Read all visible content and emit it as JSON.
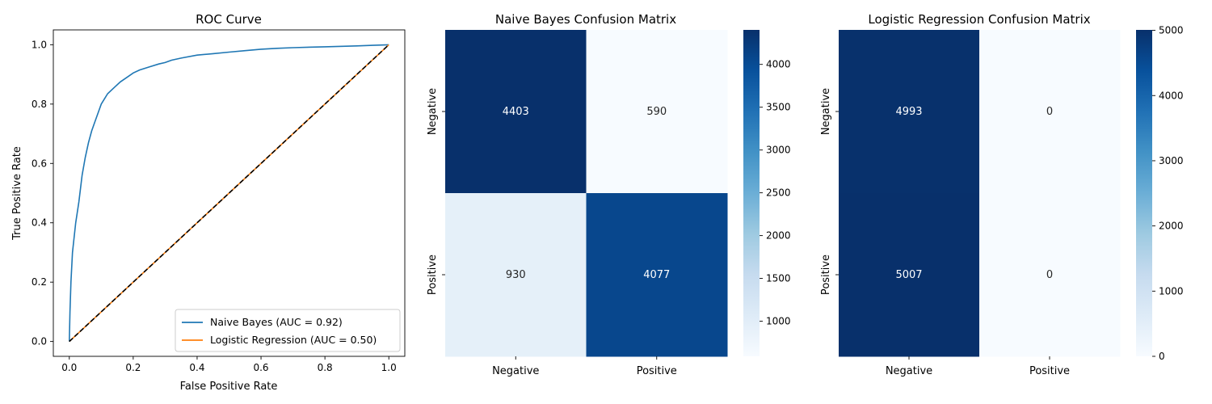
{
  "chart_data": [
    {
      "type": "line",
      "title": "ROC Curve",
      "xlabel": "False Positive Rate",
      "ylabel": "True Positive Rate",
      "xlim": [
        -0.05,
        1.05
      ],
      "ylim": [
        -0.05,
        1.05
      ],
      "xticks": [
        "0.0",
        "0.2",
        "0.4",
        "0.6",
        "0.8",
        "1.0"
      ],
      "yticks": [
        "0.0",
        "0.2",
        "0.4",
        "0.6",
        "0.8",
        "1.0"
      ],
      "grid": false,
      "legend_position": "lower-right",
      "series": [
        {
          "name": "Naive Bayes (AUC = 0.92)",
          "color": "#1f77b4",
          "x": [
            0,
            0.002,
            0.005,
            0.01,
            0.015,
            0.02,
            0.03,
            0.04,
            0.05,
            0.06,
            0.07,
            0.08,
            0.1,
            0.12,
            0.14,
            0.16,
            0.18,
            0.2,
            0.22,
            0.25,
            0.28,
            0.3,
            0.32,
            0.35,
            0.4,
            0.45,
            0.5,
            0.55,
            0.6,
            0.65,
            0.7,
            0.8,
            0.9,
            0.95,
            1.0
          ],
          "y": [
            0,
            0.1,
            0.2,
            0.3,
            0.35,
            0.4,
            0.47,
            0.56,
            0.62,
            0.67,
            0.71,
            0.74,
            0.8,
            0.835,
            0.855,
            0.875,
            0.89,
            0.905,
            0.915,
            0.925,
            0.935,
            0.94,
            0.948,
            0.955,
            0.965,
            0.97,
            0.975,
            0.98,
            0.985,
            0.988,
            0.99,
            0.993,
            0.996,
            0.998,
            1.0
          ]
        },
        {
          "name": "Logistic Regression (AUC = 0.50)",
          "color": "#ff7f0e",
          "x": [
            0,
            1
          ],
          "y": [
            0,
            1
          ]
        }
      ],
      "reference_line": {
        "x": [
          0,
          1
        ],
        "y": [
          0,
          1
        ],
        "color": "#000000",
        "style": "dashed"
      }
    },
    {
      "type": "heatmap",
      "title": "Naive Bayes Confusion Matrix",
      "row_labels": [
        "Negative",
        "Positive"
      ],
      "col_labels": [
        "Negative",
        "Positive"
      ],
      "values": [
        [
          4403,
          590
        ],
        [
          930,
          4077
        ]
      ],
      "colormap": "Blues",
      "color_range": [
        590,
        4403
      ],
      "colorbar_ticks": [
        "1000",
        "1500",
        "2000",
        "2500",
        "3000",
        "3500",
        "4000"
      ],
      "colorbar_tick_values": [
        1000,
        1500,
        2000,
        2500,
        3000,
        3500,
        4000
      ]
    },
    {
      "type": "heatmap",
      "title": "Logistic Regression Confusion Matrix",
      "row_labels": [
        "Negative",
        "Positive"
      ],
      "col_labels": [
        "Negative",
        "Positive"
      ],
      "values": [
        [
          4993,
          0
        ],
        [
          5007,
          0
        ]
      ],
      "colormap": "Blues",
      "color_range": [
        0,
        5007
      ],
      "colorbar_ticks": [
        "0",
        "1000",
        "2000",
        "3000",
        "4000",
        "5000"
      ],
      "colorbar_tick_values": [
        0,
        1000,
        2000,
        3000,
        4000,
        5000
      ]
    }
  ]
}
